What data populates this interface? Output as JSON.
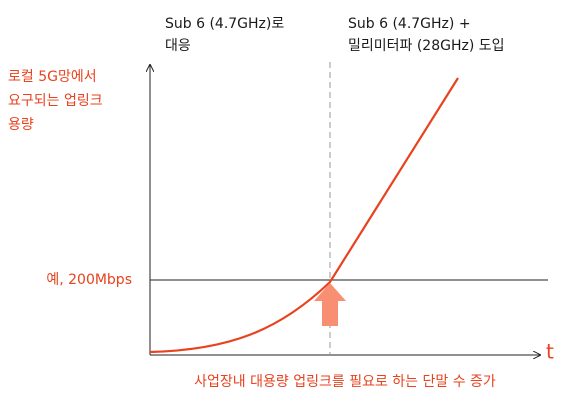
{
  "annotations": {
    "left": [
      "Sub 6 (4.7GHz)로",
      "대응"
    ],
    "right": [
      "Sub 6 (4.7GHz) +",
      "밀리미터파 (28GHz) 도입"
    ]
  },
  "y_axis_label": [
    "로컬 5G망에서",
    "요구되는 업링크",
    "용량"
  ],
  "threshold_label": "예, 200Mbps",
  "x_axis_symbol": "t",
  "x_axis_label": "사업장내 대용량 업링크를 필요로 하는 단말 수 증가"
}
